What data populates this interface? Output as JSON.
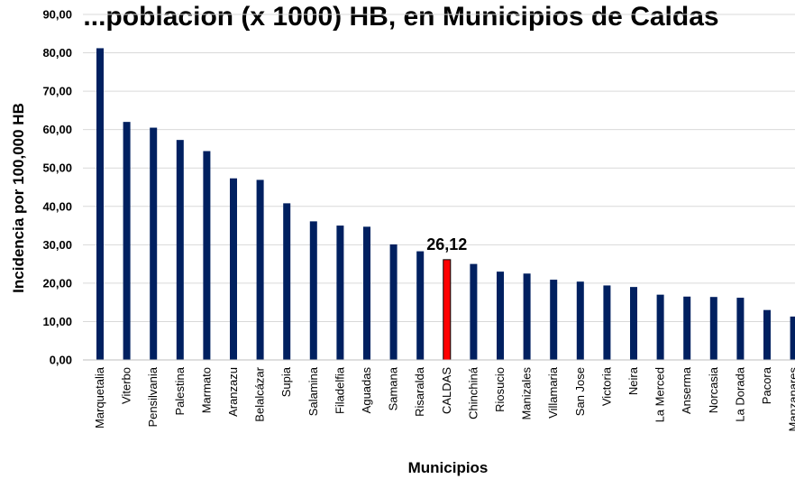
{
  "chart_data": {
    "type": "bar",
    "title": "...poblacion (x 1000) HB, en Municipios de Caldas",
    "xlabel": "Municipios",
    "ylabel": "Incidencia por 100,000 HB",
    "ylim": [
      0,
      90
    ],
    "yticks": [
      "0,00",
      "10,00",
      "20,00",
      "30,00",
      "40,00",
      "50,00",
      "60,00",
      "70,00",
      "80,00",
      "90,00"
    ],
    "grid": true,
    "legend": "none",
    "categories": [
      "Marquetalia",
      "Viterbo",
      "Pensilvania",
      "Palestina",
      "Marmato",
      "Aranzazu",
      "Belalcázar",
      "Supia",
      "Salamina",
      "Filadelfia",
      "Aguadas",
      "Samana",
      "Risaralda",
      "CALDAS",
      "Chinchiná",
      "Riosucio",
      "Manizales",
      "Villamaria",
      "San Jose",
      "Victoria",
      "Neira",
      "La Merced",
      "Anserma",
      "Norcasia",
      "La Dorada",
      "Pacora",
      "Manzanares"
    ],
    "values": [
      81.2,
      62.0,
      60.5,
      57.3,
      54.4,
      47.3,
      46.9,
      40.8,
      36.1,
      35.0,
      34.7,
      30.1,
      28.3,
      26.12,
      25.0,
      23.0,
      22.5,
      20.9,
      20.4,
      19.4,
      19.0,
      17.0,
      16.5,
      16.4,
      16.2,
      13.0,
      11.3
    ],
    "highlight_index": 13,
    "data_label": "26,12",
    "colors": {
      "bar": "#002060",
      "highlight": "#ff0000",
      "highlight_border": "#000000"
    }
  }
}
